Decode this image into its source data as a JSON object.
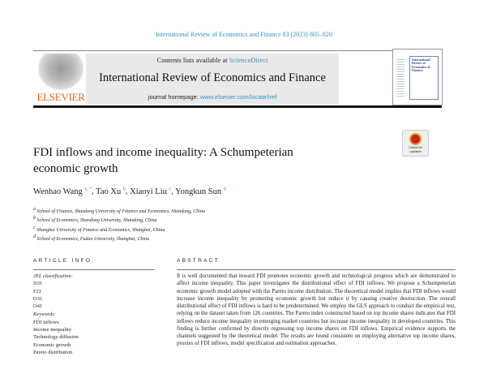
{
  "citation": "International Review of Economics and Finance 83 (2023) 805–820",
  "header": {
    "contents_prefix": "Contents lists available at ",
    "sciencedirect": "ScienceDirect",
    "journal_title": "International Review of Economics and Finance",
    "homepage_label": "journal homepage: ",
    "homepage_url": "www.elsevier.com/locate/iref",
    "publisher_logo": "ELSEVIER",
    "cover_title": "International Review of Economics & Finance"
  },
  "check_updates": "Check for updates",
  "title_line1": "FDI inflows and income inequality: A Schumpeterian",
  "title_line2": "economic growth",
  "authors": [
    {
      "name": "Wenhao Wang",
      "sup": "a, *"
    },
    {
      "name": "Tao Xu",
      "sup": "b"
    },
    {
      "name": "Xiaoyi Liu",
      "sup": "c"
    },
    {
      "name": "Yongkun Sun",
      "sup": "d"
    }
  ],
  "affiliations": [
    {
      "sup": "a",
      "text": "School of Finance, Shandong University of Finance and Economics, Shandong, China"
    },
    {
      "sup": "b",
      "text": "School of Economics, Shandong University, Shandong, China"
    },
    {
      "sup": "c",
      "text": "Shanghai University of Finance and Economics, Shanghai, China"
    },
    {
      "sup": "d",
      "text": "School of Economics, Fudan University, Shanghai, China"
    }
  ],
  "article_info": {
    "heading": "ARTICLE INFO",
    "jel_label": "JEL classification:",
    "jel": [
      "D31",
      "F21",
      "O31",
      "O41"
    ],
    "keywords_label": "Keywords:",
    "keywords": [
      "FDI inflows",
      "Income inequality",
      "Technology diffusion",
      "Economic growth",
      "Pareto distribution"
    ]
  },
  "abstract": {
    "heading": "ABSTRACT",
    "text": "It is well documented that inward FDI promotes economic growth and technological progress which are demonstrated to affect income inequality. This paper investigates the distributional effect of FDI inflows. We propose a Schumpeterian economic growth model adopted with the Pareto income distribution. The theoretical model implies that FDI inflows would increase income inequality by promoting economic growth but reduce it by causing creative destruction. The overall distributional effect of FDI inflows is hard to be predetermined. We employ the GLS approach to conduct the empirical test, relying on the dataset taken from 126 countries. The Pareto index constructed based on top income shares indicates that FDI inflows reduce income inequality in emerging market countries but increase income inequality in developed countries. This finding is further confirmed by directly regressing top income shares on FDI inflows. Empirical evidence supports the channels suggested by the theoretical model. The results are found consistent on employing alternative top income shares, proxies of FDI inflows, model specification and estimation approaches."
  }
}
